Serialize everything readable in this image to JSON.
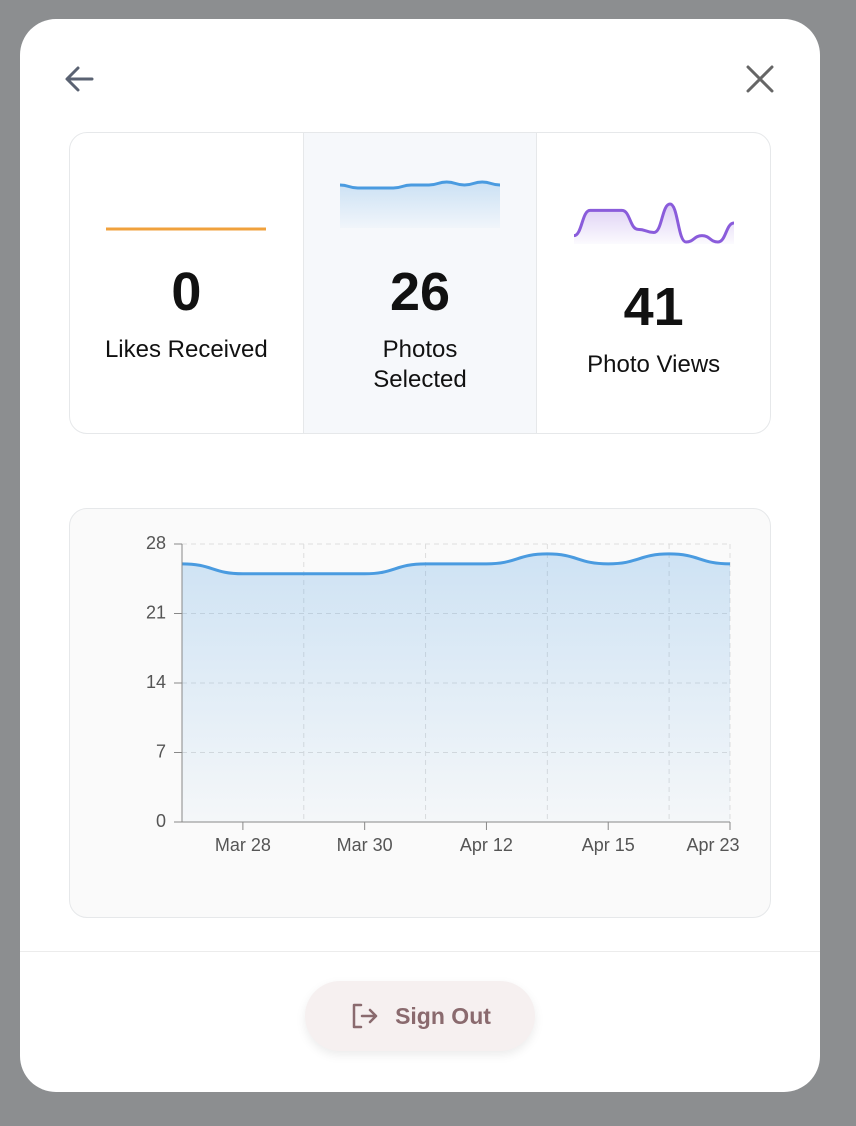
{
  "stats": [
    {
      "value": 0,
      "label": "Likes Received",
      "sparkline": [
        0,
        0,
        0,
        0,
        0,
        0,
        0,
        0,
        0,
        0
      ],
      "color": "#f0a13c"
    },
    {
      "value": 26,
      "label": "Photos Selected",
      "sparkline": [
        26,
        25,
        25,
        25,
        26,
        26,
        27,
        26,
        27,
        26
      ],
      "color": "#4a9be0"
    },
    {
      "value": 41,
      "label": "Photo Views",
      "sparkline": [
        2,
        6,
        6,
        6,
        3,
        2.5,
        7,
        1,
        2,
        1,
        4
      ],
      "color": "#8a5cdb"
    }
  ],
  "chart_data": {
    "type": "line",
    "categories": [
      null,
      "Mar 28",
      null,
      "Mar 30",
      null,
      "Apr 12",
      null,
      "Apr 15",
      null,
      "Apr 23"
    ],
    "values": [
      26,
      25,
      25,
      25,
      26,
      26,
      27,
      26,
      27,
      26
    ],
    "color": "#4a9be0",
    "ylim": [
      0,
      28
    ],
    "yticks": [
      0,
      7,
      14,
      21,
      28
    ],
    "grid": true
  },
  "sign_out": "Sign Out"
}
